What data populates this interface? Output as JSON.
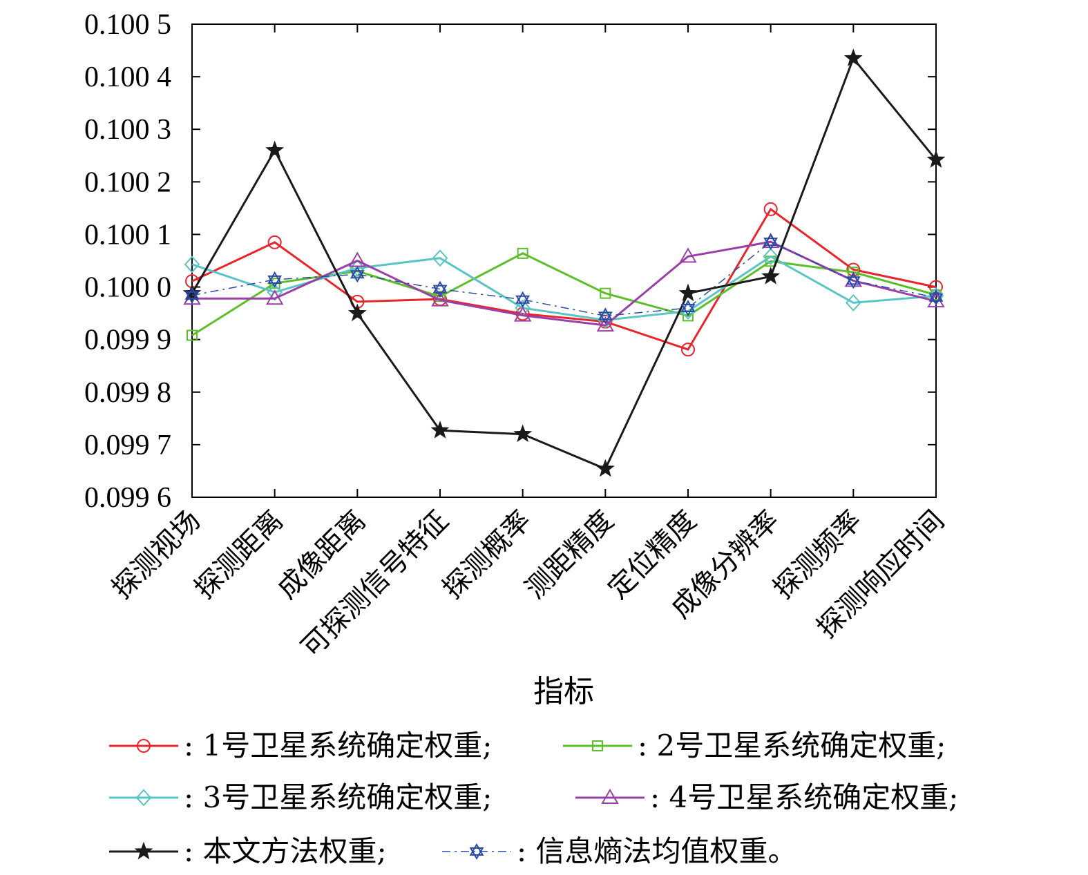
{
  "chart_data": {
    "type": "line",
    "xlabel": "指标",
    "ylabel": "",
    "ylim": [
      0.0996,
      0.1005
    ],
    "yticks": [
      0.0996,
      0.0997,
      0.0998,
      0.0999,
      0.1,
      0.1001,
      0.1002,
      0.1003,
      0.1004,
      0.1005
    ],
    "ytick_labels": [
      "0.099 6",
      "0.099 7",
      "0.099 8",
      "0.099 9",
      "0.100 0",
      "0.100 1",
      "0.100 2",
      "0.100 3",
      "0.100 4",
      "0.100 5"
    ],
    "categories": [
      "探测视场",
      "探测距离",
      "成像距离",
      "可探测信号特征",
      "探测概率",
      "测距精度",
      "定位精度",
      "成像分辨率",
      "探测频率",
      "探测响应时间"
    ],
    "series": [
      {
        "name": "1号卫星系统确定权重;",
        "color": "#e8252a",
        "marker": "circle",
        "dash": "solid",
        "values": [
          0.100011,
          0.100085,
          0.099972,
          0.099977,
          0.099949,
          0.099934,
          0.099881,
          0.100148,
          0.100033,
          0.1
        ]
      },
      {
        "name": "2号卫星系统确定权重;",
        "color": "#5cbf2a",
        "marker": "square",
        "dash": "solid",
        "values": [
          0.099908,
          0.100007,
          0.10003,
          0.099982,
          0.100064,
          0.099988,
          0.099945,
          0.100049,
          0.100028,
          0.099985
        ]
      },
      {
        "name": "3号卫星系统确定权重;",
        "color": "#5ac4c4",
        "marker": "diamond",
        "dash": "solid",
        "values": [
          0.100043,
          0.09999,
          0.100036,
          0.100055,
          0.09996,
          0.099937,
          0.099954,
          0.100058,
          0.09997,
          0.099983
        ]
      },
      {
        "name": "4号卫星系统确定权重;",
        "color": "#9b3fa8",
        "marker": "triangle",
        "dash": "solid",
        "values": [
          0.099978,
          0.099978,
          0.10005,
          0.099975,
          0.099946,
          0.099927,
          0.100058,
          0.100086,
          0.100012,
          0.099973
        ]
      },
      {
        "name": "本文方法权重;",
        "color": "#1a1a1a",
        "marker": "star",
        "dash": "solid",
        "values": [
          0.099988,
          0.10026,
          0.09995,
          0.099727,
          0.09972,
          0.099654,
          0.099988,
          0.10002,
          0.100435,
          0.100242
        ]
      },
      {
        "name": "信息熵法均值权重。",
        "color": "#2a4aa8",
        "marker": "hexagram",
        "dash": "dashdot",
        "values": [
          0.099984,
          0.100014,
          0.100024,
          0.099996,
          0.099976,
          0.099945,
          0.09996,
          0.100086,
          0.100012,
          0.09998
        ]
      }
    ]
  }
}
